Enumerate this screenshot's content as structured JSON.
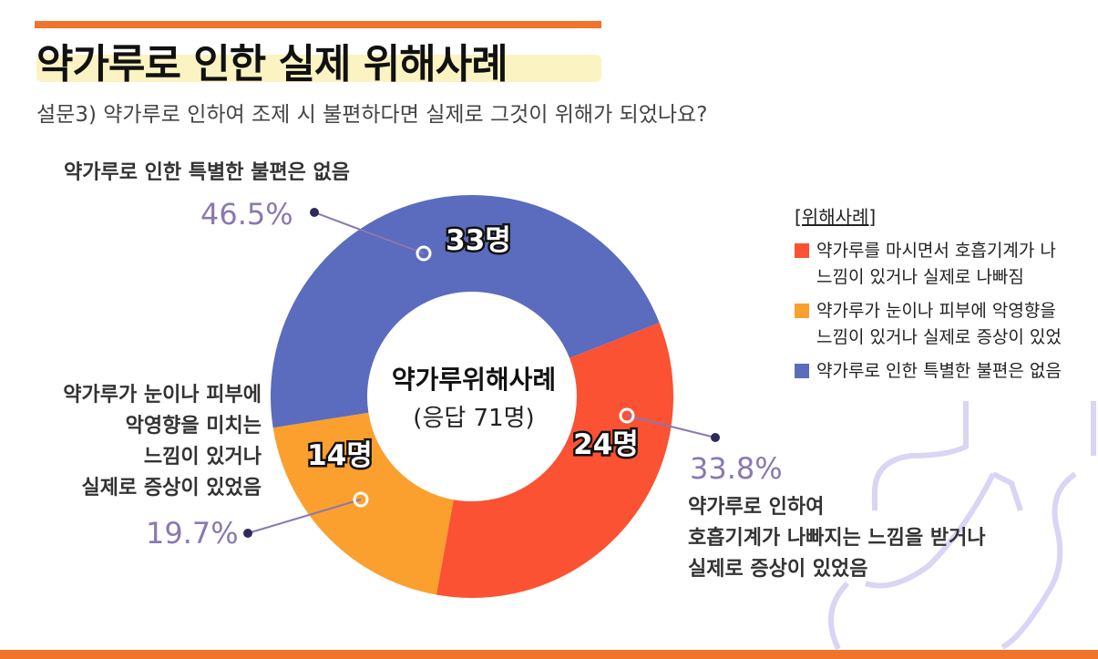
{
  "header": {
    "title": "약가루로 인한 실제 위해사례",
    "subtitle": "설문3) 약가루로 인하여 조제 시 불편하다면 실제로 그것이 위해가 되었나요?"
  },
  "chart_data": {
    "type": "pie",
    "variant": "donut",
    "center_title": "약가루위해사례",
    "center_subtitle": "(응답 71명)",
    "total_respondents": 71,
    "slices": [
      {
        "label": "약가루로 인하여 호흡기계가 나빠지는 느낌을 받거나 실제로 증상이 있었음",
        "label_lines": [
          "약가루로 인하여",
          "호흡기계가 나빠지는 느낌을 받거나",
          "실제로 증상이 있었음"
        ],
        "count": 24,
        "count_label": "24명",
        "percent": 33.8,
        "percent_label": "33.8%",
        "color": "#fa5233"
      },
      {
        "label": "약가루가 눈이나 피부에 악영향을 미치는 느낌이 있거나 실제로 증상이 있었음",
        "label_lines": [
          "약가루가 눈이나 피부에",
          "악영향을 미치는",
          "느낌이 있거나",
          "실제로 증상이 있었음"
        ],
        "count": 14,
        "count_label": "14명",
        "percent": 19.7,
        "percent_label": "19.7%",
        "color": "#fba02e"
      },
      {
        "label": "약가루로 인한 특별한 불편은 없음",
        "label_lines": [
          "약가루로 인한 특별한 불편은 없음"
        ],
        "count": 33,
        "count_label": "33명",
        "percent": 46.5,
        "percent_label": "46.5%",
        "color": "#5b6bbd"
      }
    ],
    "legend": {
      "title": "[위해사례]",
      "placement": "right",
      "items": [
        {
          "lines": [
            "약가루를 마시면서 호흡기계가 나",
            "느낌이 있거나 실제로 나빠짐"
          ],
          "color": "#fa5233"
        },
        {
          "lines": [
            "약가루가 눈이나 피부에 악영향을",
            "느낌이 있거나 실제로 증상이 있었"
          ],
          "color": "#fba02e"
        },
        {
          "lines": [
            "약가루로 인한 특별한 불편은 없음"
          ],
          "color": "#5b6bbd"
        }
      ]
    }
  },
  "colors": {
    "accent": "#f2732a",
    "highlight": "#fbf3c2",
    "percent_text": "#8a78b0",
    "decoration": "#d6d2f2"
  }
}
